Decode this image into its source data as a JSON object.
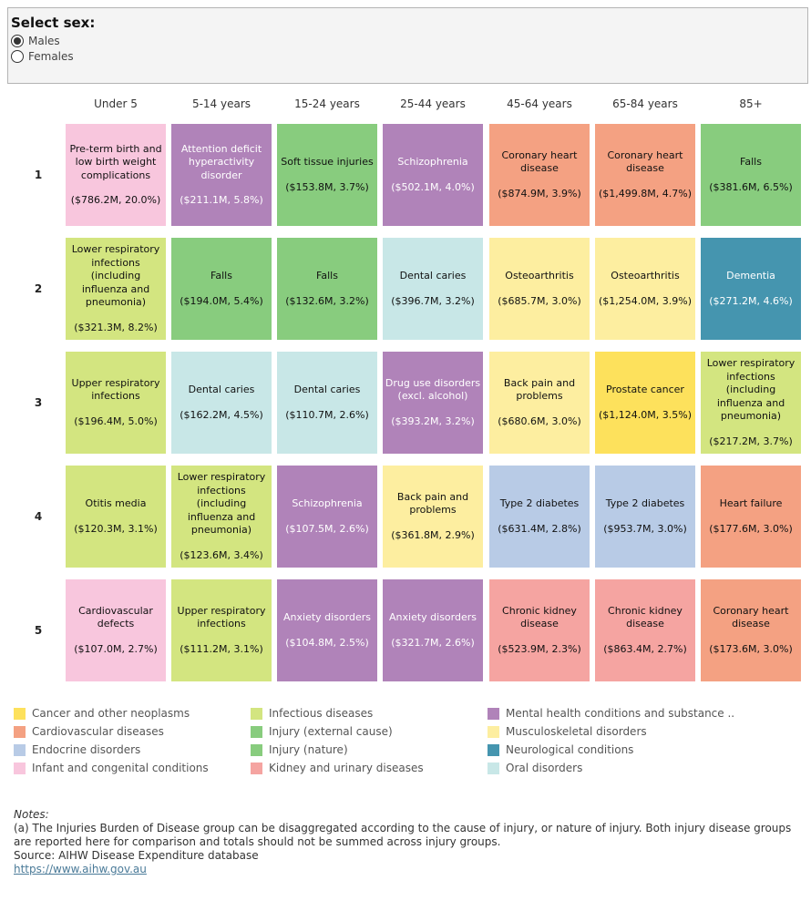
{
  "selector": {
    "title": "Select sex:",
    "options": [
      {
        "label": "Males",
        "selected": true
      },
      {
        "label": "Females",
        "selected": false
      }
    ]
  },
  "chart_data": {
    "type": "table",
    "columns": [
      "Under 5",
      "5-14 years",
      "15-24 years",
      "25-44 years",
      "45-64 years",
      "65-84 years",
      "85+"
    ],
    "rows": [
      "1",
      "2",
      "3",
      "4",
      "5"
    ],
    "cells": [
      [
        {
          "disease": "Pre-term birth and low birth weight complications",
          "value": "($786.2M, 20.0%)",
          "spend_m": 786.2,
          "pct": 20.0,
          "group": "Infant and congenital conditions"
        },
        {
          "disease": "Attention deficit hyperactivity disorder",
          "value": "($211.1M, 5.8%)",
          "spend_m": 211.1,
          "pct": 5.8,
          "group": "Mental health conditions and substance .."
        },
        {
          "disease": "Soft tissue injuries",
          "value": "($153.8M, 3.7%)",
          "spend_m": 153.8,
          "pct": 3.7,
          "group": "Injury (nature)"
        },
        {
          "disease": "Schizophrenia",
          "value": "($502.1M, 4.0%)",
          "spend_m": 502.1,
          "pct": 4.0,
          "group": "Mental health conditions and substance .."
        },
        {
          "disease": "Coronary heart disease",
          "value": "($874.9M, 3.9%)",
          "spend_m": 874.9,
          "pct": 3.9,
          "group": "Cardiovascular diseases"
        },
        {
          "disease": "Coronary heart disease",
          "value": "($1,499.8M, 4.7%)",
          "spend_m": 1499.8,
          "pct": 4.7,
          "group": "Cardiovascular diseases"
        },
        {
          "disease": "Falls",
          "value": "($381.6M, 6.5%)",
          "spend_m": 381.6,
          "pct": 6.5,
          "group": "Injury (external cause)"
        }
      ],
      [
        {
          "disease": "Lower respiratory infections (including influenza and pneumonia)",
          "value": "($321.3M, 8.2%)",
          "spend_m": 321.3,
          "pct": 8.2,
          "group": "Infectious diseases"
        },
        {
          "disease": "Falls",
          "value": "($194.0M, 5.4%)",
          "spend_m": 194.0,
          "pct": 5.4,
          "group": "Injury (external cause)"
        },
        {
          "disease": "Falls",
          "value": "($132.6M, 3.2%)",
          "spend_m": 132.6,
          "pct": 3.2,
          "group": "Injury (external cause)"
        },
        {
          "disease": "Dental caries",
          "value": "($396.7M, 3.2%)",
          "spend_m": 396.7,
          "pct": 3.2,
          "group": "Oral disorders"
        },
        {
          "disease": "Osteoarthritis",
          "value": "($685.7M, 3.0%)",
          "spend_m": 685.7,
          "pct": 3.0,
          "group": "Musculoskeletal disorders"
        },
        {
          "disease": "Osteoarthritis",
          "value": "($1,254.0M, 3.9%)",
          "spend_m": 1254.0,
          "pct": 3.9,
          "group": "Musculoskeletal disorders"
        },
        {
          "disease": "Dementia",
          "value": "($271.2M, 4.6%)",
          "spend_m": 271.2,
          "pct": 4.6,
          "group": "Neurological conditions"
        }
      ],
      [
        {
          "disease": "Upper respiratory infections",
          "value": "($196.4M, 5.0%)",
          "spend_m": 196.4,
          "pct": 5.0,
          "group": "Infectious diseases"
        },
        {
          "disease": "Dental caries",
          "value": "($162.2M, 4.5%)",
          "spend_m": 162.2,
          "pct": 4.5,
          "group": "Oral disorders"
        },
        {
          "disease": "Dental caries",
          "value": "($110.7M, 2.6%)",
          "spend_m": 110.7,
          "pct": 2.6,
          "group": "Oral disorders"
        },
        {
          "disease": "Drug use disorders (excl. alcohol)",
          "value": "($393.2M, 3.2%)",
          "spend_m": 393.2,
          "pct": 3.2,
          "group": "Mental health conditions and substance .."
        },
        {
          "disease": "Back pain and problems",
          "value": "($680.6M, 3.0%)",
          "spend_m": 680.6,
          "pct": 3.0,
          "group": "Musculoskeletal disorders"
        },
        {
          "disease": "Prostate cancer",
          "value": "($1,124.0M, 3.5%)",
          "spend_m": 1124.0,
          "pct": 3.5,
          "group": "Cancer and other neoplasms"
        },
        {
          "disease": "Lower respiratory infections (including influenza and pneumonia)",
          "value": "($217.2M, 3.7%)",
          "spend_m": 217.2,
          "pct": 3.7,
          "group": "Infectious diseases"
        }
      ],
      [
        {
          "disease": "Otitis media",
          "value": "($120.3M, 3.1%)",
          "spend_m": 120.3,
          "pct": 3.1,
          "group": "Infectious diseases"
        },
        {
          "disease": "Lower respiratory infections (including influenza and pneumonia)",
          "value": "($123.6M, 3.4%)",
          "spend_m": 123.6,
          "pct": 3.4,
          "group": "Infectious diseases"
        },
        {
          "disease": "Schizophrenia",
          "value": "($107.5M, 2.6%)",
          "spend_m": 107.5,
          "pct": 2.6,
          "group": "Mental health conditions and substance .."
        },
        {
          "disease": "Back pain and problems",
          "value": "($361.8M, 2.9%)",
          "spend_m": 361.8,
          "pct": 2.9,
          "group": "Musculoskeletal disorders"
        },
        {
          "disease": "Type 2 diabetes",
          "value": "($631.4M, 2.8%)",
          "spend_m": 631.4,
          "pct": 2.8,
          "group": "Endocrine disorders"
        },
        {
          "disease": "Type 2 diabetes",
          "value": "($953.7M, 3.0%)",
          "spend_m": 953.7,
          "pct": 3.0,
          "group": "Endocrine disorders"
        },
        {
          "disease": "Heart failure",
          "value": "($177.6M, 3.0%)",
          "spend_m": 177.6,
          "pct": 3.0,
          "group": "Cardiovascular diseases"
        }
      ],
      [
        {
          "disease": "Cardiovascular defects",
          "value": "($107.0M, 2.7%)",
          "spend_m": 107.0,
          "pct": 2.7,
          "group": "Infant and congenital conditions"
        },
        {
          "disease": "Upper respiratory infections",
          "value": "($111.2M, 3.1%)",
          "spend_m": 111.2,
          "pct": 3.1,
          "group": "Infectious diseases"
        },
        {
          "disease": "Anxiety disorders",
          "value": "($104.8M, 2.5%)",
          "spend_m": 104.8,
          "pct": 2.5,
          "group": "Mental health conditions and substance .."
        },
        {
          "disease": "Anxiety disorders",
          "value": "($321.7M, 2.6%)",
          "spend_m": 321.7,
          "pct": 2.6,
          "group": "Mental health conditions and substance .."
        },
        {
          "disease": "Chronic kidney disease",
          "value": "($523.9M, 2.3%)",
          "spend_m": 523.9,
          "pct": 2.3,
          "group": "Kidney and urinary diseases"
        },
        {
          "disease": "Chronic kidney disease",
          "value": "($863.4M, 2.7%)",
          "spend_m": 863.4,
          "pct": 2.7,
          "group": "Kidney and urinary diseases"
        },
        {
          "disease": "Coronary heart disease",
          "value": "($173.6M, 3.0%)",
          "spend_m": 173.6,
          "pct": 3.0,
          "group": "Cardiovascular diseases"
        }
      ]
    ],
    "legend": [
      {
        "name": "Cancer and other neoplasms",
        "color": "#fde15c"
      },
      {
        "name": "Cardiovascular diseases",
        "color": "#f4a182"
      },
      {
        "name": "Endocrine disorders",
        "color": "#b8cbe6"
      },
      {
        "name": "Infant and congenital conditions",
        "color": "#f8c6dd"
      },
      {
        "name": "Infectious diseases",
        "color": "#d3e580"
      },
      {
        "name": "Injury (external cause)",
        "color": "#88cc7e"
      },
      {
        "name": "Injury (nature)",
        "color": "#88cc7e"
      },
      {
        "name": "Kidney and urinary diseases",
        "color": "#f5a4a1"
      },
      {
        "name": "Mental health conditions and substance ..",
        "color": "#b083b9"
      },
      {
        "name": "Musculoskeletal disorders",
        "color": "#fdeea0"
      },
      {
        "name": "Neurological conditions",
        "color": "#4595af"
      },
      {
        "name": "Oral disorders",
        "color": "#c8e7e7"
      }
    ],
    "legend_placement": "bottom"
  },
  "notes": {
    "title": "Notes:",
    "text": "(a) The Injuries Burden of Disease group can be disaggregated according to the cause of injury, or nature of injury. Both injury disease groups are reported here for comparison and totals should not be summed across injury groups.",
    "source": "Source: AIHW Disease Expenditure database",
    "link": "https://www.aihw.gov.au"
  }
}
